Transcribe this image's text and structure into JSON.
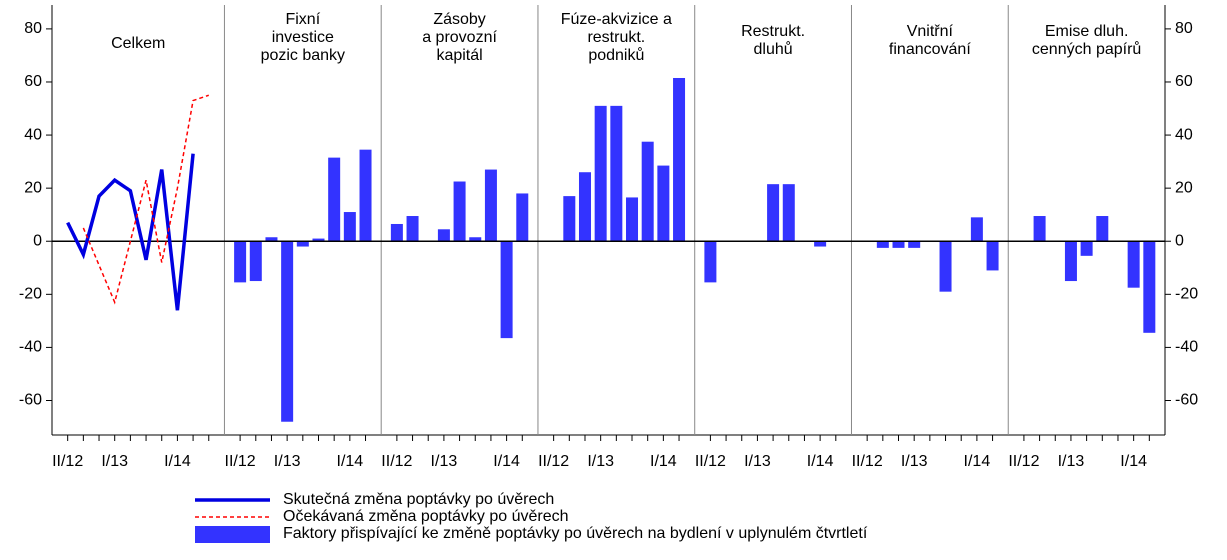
{
  "chart_data": {
    "type": "panel-bar",
    "ylim": [
      -73,
      89
    ],
    "yticks": [
      -60,
      -40,
      -20,
      0,
      20,
      40,
      60,
      80
    ],
    "categories": [
      "II/12",
      null,
      null,
      "I/13",
      null,
      null,
      null,
      "I/14",
      null,
      null
    ],
    "panels": [
      [
        "Celkem"
      ],
      [
        "Fixní",
        "investice",
        "pozic banky"
      ],
      [
        "Zásoby",
        "a provozní",
        "kapitál"
      ],
      [
        "Fúze-akvizice a",
        "restrukt.",
        "podniků"
      ],
      [
        "Restrukt.",
        "dluhů"
      ],
      [
        "Vnitřní",
        "financování"
      ],
      [
        "Emise dluh.",
        "cenných papírů"
      ]
    ],
    "series": [
      {
        "name": "Skutečná změna poptávky po úvěrech",
        "color": "#0000e0",
        "type": "line",
        "values": [
          7,
          -5,
          17,
          23,
          19,
          -7,
          27,
          -26,
          33,
          null
        ]
      },
      {
        "name": "Očekávaná změna poptávky po úvěrech",
        "color": "#ff0000",
        "type": "line",
        "dashed": true,
        "values": [
          null,
          5,
          -9,
          -23,
          0,
          23,
          -8,
          20,
          53,
          55
        ]
      },
      {
        "name": "Faktory přispívající ke změně poptávky po úvěrech na bydlení v uplynulém čtvrtletí",
        "color": "#3333ff",
        "type": "bar",
        "panel_values": [
          [
            -15.5,
            -15,
            1.5,
            -68,
            -2,
            1,
            31.5,
            11,
            34.5
          ],
          [
            6.5,
            9.5,
            0,
            4.5,
            22.5,
            1.5,
            27,
            -36.5,
            18
          ],
          [
            0,
            17,
            26,
            51,
            51,
            16.5,
            37.5,
            28.5,
            61.5
          ],
          [
            -15.5,
            0,
            0,
            0,
            21.5,
            21.5,
            0,
            -2,
            0
          ],
          [
            0,
            -2.5,
            -2.5,
            -2.5,
            0,
            -19,
            0,
            9,
            -11
          ],
          [
            0,
            9.5,
            0,
            -15,
            -5.5,
            9.5,
            0,
            -17.5,
            -34.5
          ]
        ]
      }
    ]
  }
}
